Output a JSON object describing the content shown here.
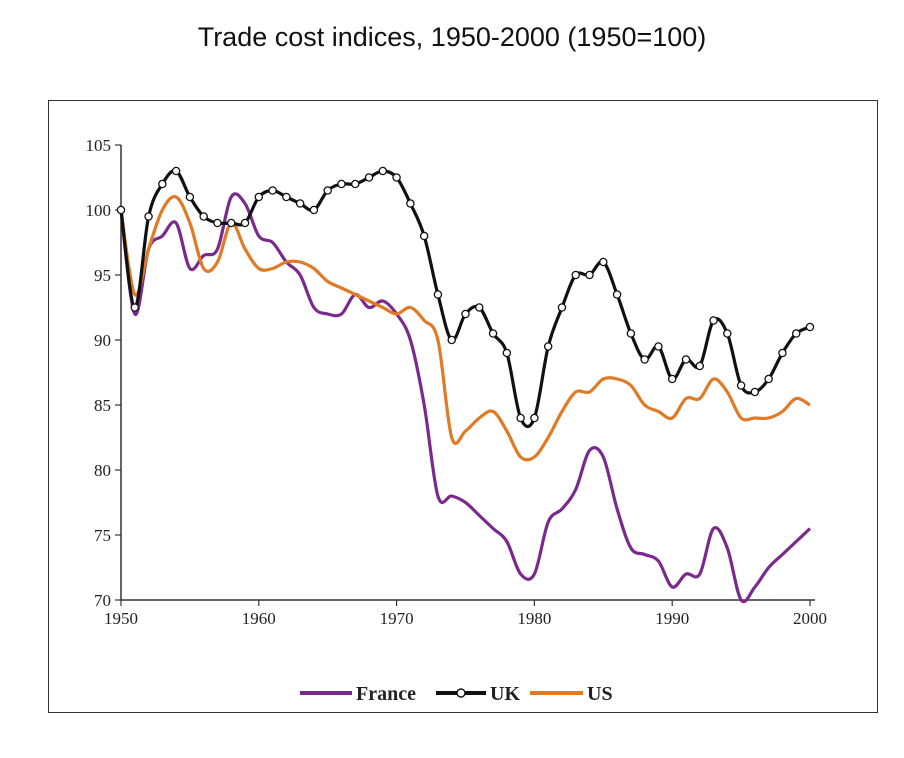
{
  "chart_data": {
    "type": "line",
    "title": "Trade cost indices, 1950-2000 (1950=100)",
    "xlabel": "",
    "ylabel": "",
    "xlim": [
      1950,
      2000
    ],
    "ylim": [
      70,
      105
    ],
    "x_ticks": [
      "1950",
      "1960",
      "1970",
      "1980",
      "1990",
      "2000"
    ],
    "y_ticks": [
      "70",
      "75",
      "80",
      "85",
      "90",
      "95",
      "100",
      "105"
    ],
    "grid": false,
    "legend_position": "bottom",
    "series": [
      {
        "name": "France",
        "color": "#7a2a8c",
        "marker": "none",
        "x": [
          1950,
          1951,
          1952,
          1953,
          1954,
          1955,
          1956,
          1957,
          1958,
          1959,
          1960,
          1961,
          1962,
          1963,
          1964,
          1965,
          1966,
          1967,
          1968,
          1969,
          1970,
          1971,
          1972,
          1973,
          1974,
          1975,
          1976,
          1977,
          1978,
          1979,
          1980,
          1981,
          1982,
          1983,
          1984,
          1985,
          1986,
          1987,
          1988,
          1989,
          1990,
          1991,
          1992,
          1993,
          1994,
          1995,
          1996,
          1997,
          1998,
          1999,
          2000
        ],
        "values": [
          100,
          92,
          97,
          98,
          99,
          95.5,
          96.5,
          97,
          101,
          100.5,
          98,
          97.5,
          96,
          95,
          92.5,
          92,
          92,
          93.5,
          92.5,
          93,
          92,
          90,
          85,
          78,
          78,
          77.5,
          76.5,
          75.5,
          74.5,
          72,
          72,
          76,
          77,
          78.5,
          81.5,
          81,
          77,
          74,
          73.5,
          73,
          71,
          72,
          72,
          75.5,
          74,
          70,
          71,
          72.5,
          73.5,
          74.5,
          75.5
        ]
      },
      {
        "name": "UK",
        "color": "#111111",
        "marker": "circle",
        "x": [
          1950,
          1951,
          1952,
          1953,
          1954,
          1955,
          1956,
          1957,
          1958,
          1959,
          1960,
          1961,
          1962,
          1963,
          1964,
          1965,
          1966,
          1967,
          1968,
          1969,
          1970,
          1971,
          1972,
          1973,
          1974,
          1975,
          1976,
          1977,
          1978,
          1979,
          1980,
          1981,
          1982,
          1983,
          1984,
          1985,
          1986,
          1987,
          1988,
          1989,
          1990,
          1991,
          1992,
          1993,
          1994,
          1995,
          1996,
          1997,
          1998,
          1999,
          2000
        ],
        "values": [
          100,
          92.5,
          99.5,
          102,
          103,
          101,
          99.5,
          99,
          99,
          99,
          101,
          101.5,
          101,
          100.5,
          100,
          101.5,
          102,
          102,
          102.5,
          103,
          102.5,
          100.5,
          98,
          93.5,
          90,
          92,
          92.5,
          90.5,
          89,
          84,
          84,
          89.5,
          92.5,
          95,
          95,
          96,
          93.5,
          90.5,
          88.5,
          89.5,
          87,
          88.5,
          88,
          91.5,
          90.5,
          86.5,
          86,
          87,
          89,
          90.5,
          91
        ]
      },
      {
        "name": "US",
        "color": "#e07a24",
        "marker": "none",
        "x": [
          1950,
          1951,
          1952,
          1953,
          1954,
          1955,
          1956,
          1957,
          1958,
          1959,
          1960,
          1961,
          1962,
          1963,
          1964,
          1965,
          1966,
          1967,
          1968,
          1969,
          1970,
          1971,
          1972,
          1973,
          1974,
          1975,
          1976,
          1977,
          1978,
          1979,
          1980,
          1981,
          1982,
          1983,
          1984,
          1985,
          1986,
          1987,
          1988,
          1989,
          1990,
          1991,
          1992,
          1993,
          1994,
          1995,
          1996,
          1997,
          1998,
          1999,
          2000
        ],
        "values": [
          100,
          93.5,
          97,
          100,
          101,
          99,
          95.5,
          96,
          99,
          97,
          95.5,
          95.5,
          96,
          96,
          95.5,
          94.5,
          94,
          93.5,
          93,
          92.5,
          92,
          92.5,
          91.5,
          90,
          82.5,
          83,
          84,
          84.5,
          83,
          81,
          81,
          82.5,
          84.5,
          86,
          86,
          87,
          87,
          86.5,
          85,
          84.5,
          84,
          85.5,
          85.5,
          87,
          86,
          84,
          84,
          84,
          84.5,
          85.5,
          85
        ]
      }
    ]
  }
}
